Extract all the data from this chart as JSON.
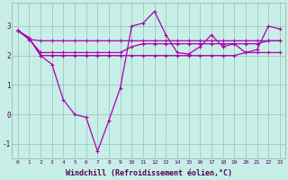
{
  "xlabel": "Windchill (Refroidissement éolien,°C)",
  "bg_color": "#c8eee8",
  "line_color": "#aa00aa",
  "grid_color": "#99ccbb",
  "ylim": [
    -1.5,
    3.8
  ],
  "xlim": [
    -0.5,
    23.5
  ],
  "yticks": [
    -1,
    0,
    1,
    2,
    3
  ],
  "xticks": [
    0,
    1,
    2,
    3,
    4,
    5,
    6,
    7,
    8,
    9,
    10,
    11,
    12,
    13,
    14,
    15,
    16,
    17,
    18,
    19,
    20,
    21,
    22,
    23
  ],
  "series": [
    [
      2.85,
      2.6,
      2.0,
      2.0,
      2.0,
      2.0,
      2.0,
      2.0,
      2.0,
      2.0,
      2.0,
      2.0,
      2.0,
      2.0,
      2.0,
      2.0,
      2.0,
      2.0,
      2.0,
      2.0,
      2.1,
      2.1,
      2.1,
      2.1
    ],
    [
      2.85,
      2.6,
      2.0,
      1.7,
      0.5,
      0.0,
      -0.1,
      -1.25,
      -0.2,
      0.9,
      3.0,
      3.1,
      3.5,
      2.7,
      2.1,
      2.05,
      2.3,
      2.7,
      2.3,
      2.4,
      2.1,
      2.2,
      3.0,
      2.9
    ],
    [
      2.85,
      2.55,
      2.1,
      2.1,
      2.1,
      2.1,
      2.1,
      2.1,
      2.1,
      2.1,
      2.3,
      2.4,
      2.4,
      2.4,
      2.4,
      2.4,
      2.4,
      2.4,
      2.4,
      2.4,
      2.4,
      2.4,
      2.5,
      2.5
    ],
    [
      2.85,
      2.55,
      2.5,
      2.5,
      2.5,
      2.5,
      2.5,
      2.5,
      2.5,
      2.5,
      2.5,
      2.5,
      2.5,
      2.5,
      2.5,
      2.5,
      2.5,
      2.5,
      2.5,
      2.5,
      2.5,
      2.5,
      2.5,
      2.5
    ]
  ]
}
